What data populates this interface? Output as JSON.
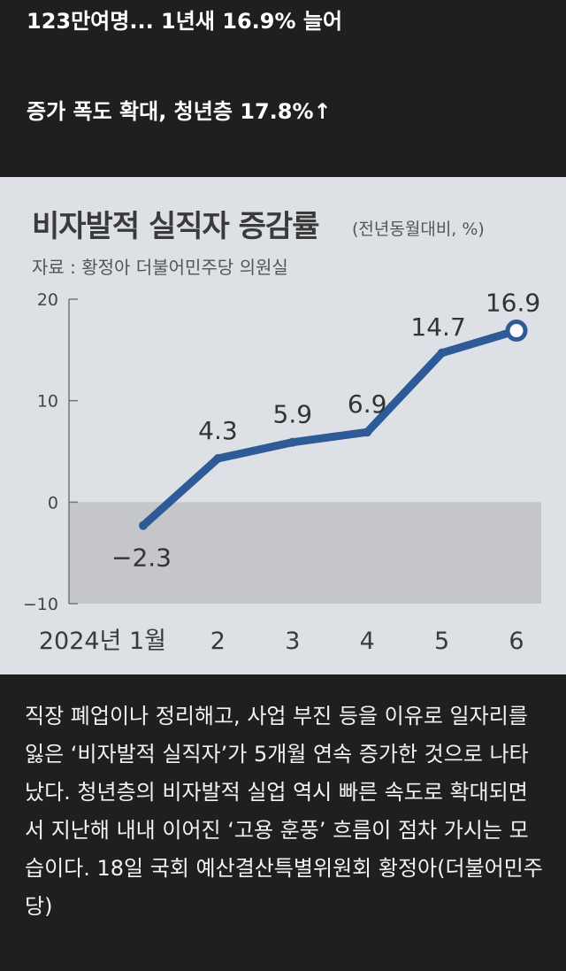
{
  "headlines": {
    "line1": "123만여명... 1년새 16.9% 늘어",
    "line2": "증가 폭도 확대, 청년층 17.8%↑"
  },
  "chart_data": {
    "type": "line",
    "title": "비자발적 실직자 증감률",
    "unit_note": "(전년동월대비, %)",
    "source": "자료 : 황정아 더불어민주당 의원실",
    "x": [
      "2024년 1월",
      "2",
      "3",
      "4",
      "5",
      "6"
    ],
    "series": [
      {
        "values": [
          -2.3,
          4.3,
          5.9,
          6.9,
          14.7,
          16.9
        ]
      }
    ],
    "data_labels": [
      "−2.3",
      "4.3",
      "5.9",
      "6.9",
      "14.7",
      "16.9"
    ],
    "yticks": [
      20,
      10,
      0,
      -10
    ],
    "ytick_labels": [
      "20",
      "10",
      "0",
      "−10"
    ],
    "ylim": [
      -10,
      20
    ],
    "negative_region_shaded": true,
    "colors": {
      "line": "#2e5a98",
      "background": "#dde1e6",
      "negative_fill": "#c4c6c9"
    }
  },
  "article": {
    "text": "직장 폐업이나 정리해고, 사업 부진 등을 이유로 일자리를 잃은 ‘비자발적 실직자’가 5개월 연속 증가한 것으로 나타났다. 청년층의 비자발적 실업 역시 빠른 속도로 확대되면서 지난해 내내 이어진 ‘고용 훈풍’ 흐름이 점차 가시는 모습이다. 18일 국회 예산결산특별위원회 황정아(더불어민주당)"
  }
}
